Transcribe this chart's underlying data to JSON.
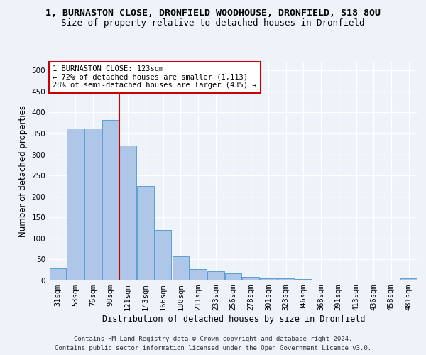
{
  "title": "1, BURNASTON CLOSE, DRONFIELD WOODHOUSE, DRONFIELD, S18 8QU",
  "subtitle": "Size of property relative to detached houses in Dronfield",
  "xlabel": "Distribution of detached houses by size in Dronfield",
  "ylabel": "Number of detached properties",
  "footer_line1": "Contains HM Land Registry data © Crown copyright and database right 2024.",
  "footer_line2": "Contains public sector information licensed under the Open Government Licence v3.0.",
  "bar_labels": [
    "31sqm",
    "53sqm",
    "76sqm",
    "98sqm",
    "121sqm",
    "143sqm",
    "166sqm",
    "188sqm",
    "211sqm",
    "233sqm",
    "256sqm",
    "278sqm",
    "301sqm",
    "323sqm",
    "346sqm",
    "368sqm",
    "391sqm",
    "413sqm",
    "436sqm",
    "458sqm",
    "481sqm"
  ],
  "bar_values": [
    28,
    362,
    362,
    383,
    321,
    225,
    120,
    58,
    27,
    22,
    17,
    8,
    5,
    5,
    4,
    0,
    0,
    0,
    0,
    0,
    5
  ],
  "bar_color": "#aec6e8",
  "bar_edge_color": "#5a9fd4",
  "property_line_x": 3.5,
  "annotation_text": "1 BURNASTON CLOSE: 123sqm\n← 72% of detached houses are smaller (1,113)\n28% of semi-detached houses are larger (435) →",
  "annotation_box_color": "#ffffff",
  "annotation_box_edge_color": "#cc0000",
  "vline_color": "#cc0000",
  "ylim": [
    0,
    520
  ],
  "yticks": [
    0,
    50,
    100,
    150,
    200,
    250,
    300,
    350,
    400,
    450,
    500
  ],
  "background_color": "#eef2f9",
  "axes_background": "#eef2f9",
  "grid_color": "#ffffff",
  "title_fontsize": 9.5,
  "subtitle_fontsize": 9,
  "label_fontsize": 8.5,
  "tick_fontsize": 7.5,
  "footer_fontsize": 6.5,
  "ann_fontsize": 7.5
}
